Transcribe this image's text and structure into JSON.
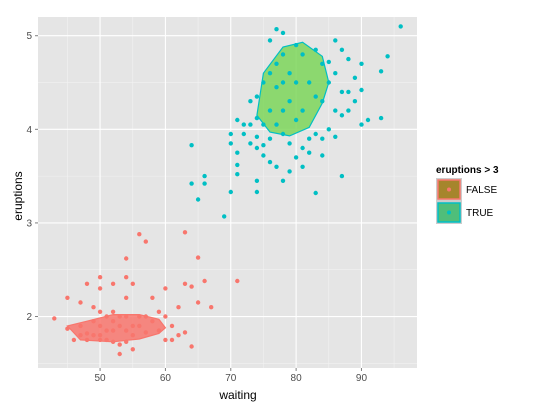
{
  "chart_data": {
    "type": "scatter",
    "title": "",
    "xlabel": "waiting",
    "ylabel": "eruptions",
    "xlim": [
      40.5,
      98.5
    ],
    "ylim": [
      1.45,
      5.2
    ],
    "x_ticks": [
      50,
      60,
      70,
      80,
      90
    ],
    "y_ticks": [
      2,
      3,
      4,
      5
    ],
    "grid": true,
    "legend_position": "right",
    "legend": {
      "title": "eruptions > 3",
      "entries": [
        "FALSE",
        "TRUE"
      ]
    },
    "colors": {
      "FALSE": "#F8766D",
      "TRUE": "#00BFC4",
      "hull_FALSE_fill": "#F8766D",
      "hull_TRUE_fill": "#7CD65B",
      "hull_FALSE_stroke": "#F8766D",
      "hull_TRUE_stroke": "#00BFC4",
      "panel": "#E5E5E5",
      "grid": "#FFFFFF"
    },
    "series": [
      {
        "name": "FALSE",
        "points": [
          [
            43,
            1.98
          ],
          [
            45,
            2.2
          ],
          [
            45,
            1.87
          ],
          [
            46,
            1.75
          ],
          [
            47,
            2.15
          ],
          [
            47,
            1.8
          ],
          [
            47,
            1.9
          ],
          [
            48,
            2.35
          ],
          [
            48,
            1.82
          ],
          [
            48,
            1.75
          ],
          [
            49,
            2.1
          ],
          [
            49,
            1.95
          ],
          [
            49,
            1.8
          ],
          [
            50,
            2.42
          ],
          [
            50,
            2.3
          ],
          [
            50,
            2.05
          ],
          [
            50,
            1.9
          ],
          [
            50,
            1.8
          ],
          [
            50,
            1.75
          ],
          [
            51,
            2.0
          ],
          [
            51,
            1.85
          ],
          [
            51,
            1.75
          ],
          [
            52,
            2.35
          ],
          [
            52,
            2.05
          ],
          [
            52,
            1.95
          ],
          [
            52,
            1.85
          ],
          [
            52,
            1.73
          ],
          [
            53,
            2.0
          ],
          [
            53,
            1.9
          ],
          [
            53,
            1.6
          ],
          [
            53,
            1.7
          ],
          [
            54,
            2.62
          ],
          [
            54,
            2.42
          ],
          [
            54,
            2.2
          ],
          [
            54,
            2.0
          ],
          [
            54,
            1.85
          ],
          [
            54,
            1.73
          ],
          [
            55,
            2.35
          ],
          [
            55,
            1.9
          ],
          [
            55,
            1.8
          ],
          [
            55,
            1.65
          ],
          [
            56,
            2.88
          ],
          [
            56,
            2.0
          ],
          [
            56,
            1.9
          ],
          [
            57,
            2.8
          ],
          [
            57,
            2.0
          ],
          [
            57,
            1.83
          ],
          [
            58,
            2.2
          ],
          [
            58,
            1.95
          ],
          [
            59,
            2.05
          ],
          [
            59,
            1.85
          ],
          [
            60,
            2.3
          ],
          [
            60,
            2.0
          ],
          [
            60,
            1.75
          ],
          [
            61,
            1.9
          ],
          [
            61,
            1.75
          ],
          [
            62,
            2.1
          ],
          [
            62,
            1.8
          ],
          [
            63,
            2.9
          ],
          [
            63,
            2.35
          ],
          [
            63,
            1.83
          ],
          [
            64,
            2.32
          ],
          [
            64,
            1.68
          ],
          [
            65,
            2.15
          ],
          [
            65,
            2.63
          ],
          [
            66,
            2.38
          ],
          [
            67,
            2.1
          ],
          [
            71,
            2.38
          ]
        ]
      },
      {
        "name": "TRUE",
        "points": [
          [
            64,
            3.83
          ],
          [
            64,
            3.42
          ],
          [
            65,
            3.25
          ],
          [
            66,
            3.5
          ],
          [
            66,
            3.42
          ],
          [
            69,
            3.07
          ],
          [
            70,
            3.95
          ],
          [
            70,
            3.85
          ],
          [
            70,
            3.33
          ],
          [
            71,
            4.1
          ],
          [
            71,
            3.75
          ],
          [
            71,
            3.62
          ],
          [
            71,
            3.52
          ],
          [
            72,
            4.05
          ],
          [
            72,
            3.95
          ],
          [
            73,
            4.3
          ],
          [
            73,
            4.05
          ],
          [
            73,
            3.85
          ],
          [
            74,
            4.35
          ],
          [
            74,
            4.12
          ],
          [
            74,
            3.92
          ],
          [
            74,
            3.8
          ],
          [
            74,
            3.45
          ],
          [
            74,
            3.33
          ],
          [
            75,
            4.5
          ],
          [
            75,
            4.05
          ],
          [
            75,
            3.72
          ],
          [
            75,
            3.83
          ],
          [
            76,
            4.95
          ],
          [
            76,
            4.6
          ],
          [
            76,
            4.2
          ],
          [
            76,
            3.9
          ],
          [
            76,
            3.65
          ],
          [
            77,
            5.07
          ],
          [
            77,
            4.7
          ],
          [
            77,
            4.45
          ],
          [
            77,
            4.05
          ],
          [
            77,
            3.6
          ],
          [
            78,
            5.03
          ],
          [
            78,
            4.8
          ],
          [
            78,
            4.5
          ],
          [
            78,
            4.2
          ],
          [
            78,
            3.95
          ],
          [
            78,
            3.45
          ],
          [
            79,
            4.6
          ],
          [
            79,
            4.3
          ],
          [
            79,
            3.85
          ],
          [
            79,
            3.55
          ],
          [
            80,
            4.9
          ],
          [
            80,
            4.5
          ],
          [
            80,
            4.1
          ],
          [
            80,
            3.7
          ],
          [
            81,
            4.8
          ],
          [
            81,
            4.2
          ],
          [
            81,
            3.8
          ],
          [
            81,
            3.6
          ],
          [
            82,
            4.5
          ],
          [
            82,
            3.9
          ],
          [
            82,
            3.75
          ],
          [
            83,
            4.85
          ],
          [
            83,
            4.35
          ],
          [
            83,
            3.95
          ],
          [
            83,
            3.32
          ],
          [
            84,
            4.7
          ],
          [
            84,
            4.3
          ],
          [
            84,
            3.9
          ],
          [
            84,
            3.72
          ],
          [
            85,
            4.72
          ],
          [
            85,
            4.5
          ],
          [
            85,
            4.0
          ],
          [
            86,
            4.95
          ],
          [
            86,
            4.6
          ],
          [
            86,
            4.2
          ],
          [
            86,
            3.92
          ],
          [
            87,
            4.85
          ],
          [
            87,
            4.4
          ],
          [
            87,
            4.15
          ],
          [
            87,
            3.5
          ],
          [
            88,
            4.75
          ],
          [
            88,
            4.4
          ],
          [
            88,
            4.2
          ],
          [
            89,
            4.55
          ],
          [
            89,
            4.3
          ],
          [
            90,
            4.7
          ],
          [
            90,
            4.42
          ],
          [
            90,
            4.05
          ],
          [
            91,
            4.1
          ],
          [
            93,
            4.62
          ],
          [
            93,
            4.12
          ],
          [
            94,
            4.78
          ],
          [
            96,
            5.1
          ]
        ]
      }
    ],
    "hulls": [
      {
        "name": "TRUE",
        "points": [
          [
            74,
            4.15
          ],
          [
            75,
            4.6
          ],
          [
            78,
            4.88
          ],
          [
            81,
            4.93
          ],
          [
            84,
            4.78
          ],
          [
            85,
            4.5
          ],
          [
            84,
            4.28
          ],
          [
            82,
            4.02
          ],
          [
            79,
            3.93
          ],
          [
            76,
            3.97
          ]
        ]
      },
      {
        "name": "FALSE",
        "points": [
          [
            45,
            1.9
          ],
          [
            48,
            1.95
          ],
          [
            52,
            2.02
          ],
          [
            56,
            2.02
          ],
          [
            59,
            1.97
          ],
          [
            60,
            1.88
          ],
          [
            59,
            1.82
          ],
          [
            56,
            1.76
          ],
          [
            52,
            1.73
          ],
          [
            47,
            1.75
          ]
        ]
      }
    ]
  }
}
